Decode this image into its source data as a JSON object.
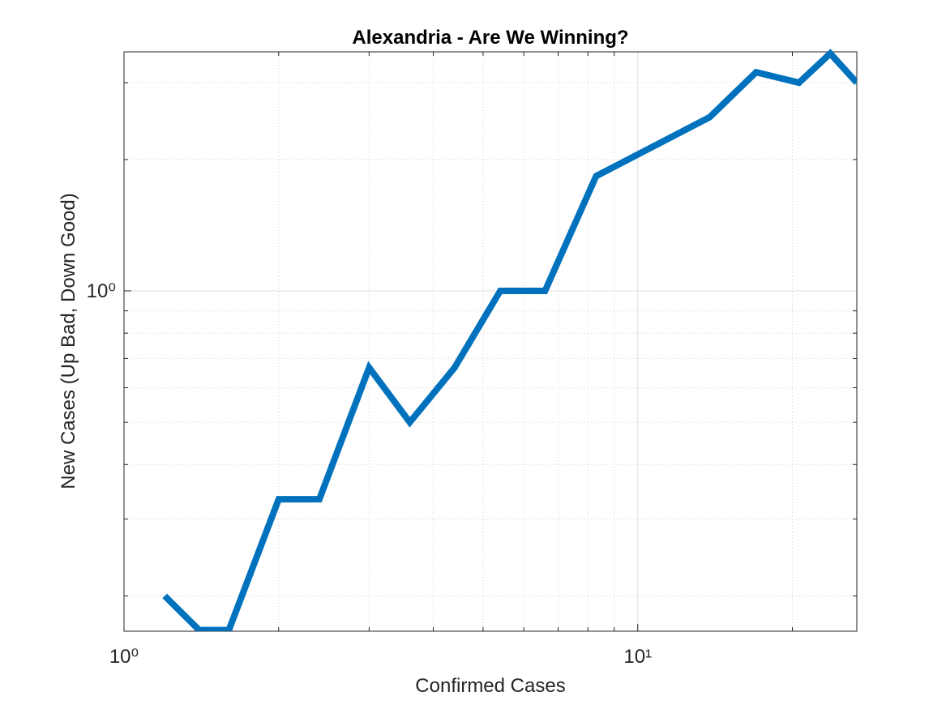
{
  "chart_data": {
    "type": "line",
    "title": "Alexandria - Are We Winning?",
    "x_label": "Confirmed Cases",
    "y_label": "New Cases (Up Bad, Down Good)",
    "x": [
      1.2,
      1.4,
      1.6,
      2.0,
      2.4,
      3.0,
      3.6,
      4.4,
      5.4,
      6.6,
      8.3,
      13.8,
      17,
      20.6,
      23.7,
      26.7
    ],
    "series": [
      {
        "color": "#0072bd",
        "values": [
          0.2,
          0.167,
          0.167,
          0.333,
          0.333,
          0.667,
          0.5,
          0.667,
          1,
          1,
          1.833,
          2.5,
          3.17,
          3.0,
          3.5,
          3.0
        ]
      }
    ],
    "xlim": [
      1,
      26.7
    ],
    "ylim": [
      0.166,
      3.53
    ],
    "xticks": [
      {
        "value": 1,
        "label": "10⁰"
      },
      {
        "value": 10,
        "label": "10¹"
      }
    ],
    "yticks": [
      {
        "value": 1,
        "label": "10⁰"
      }
    ],
    "xscale": "log",
    "yscale": "log",
    "grid": true,
    "minor_grid": true
  }
}
